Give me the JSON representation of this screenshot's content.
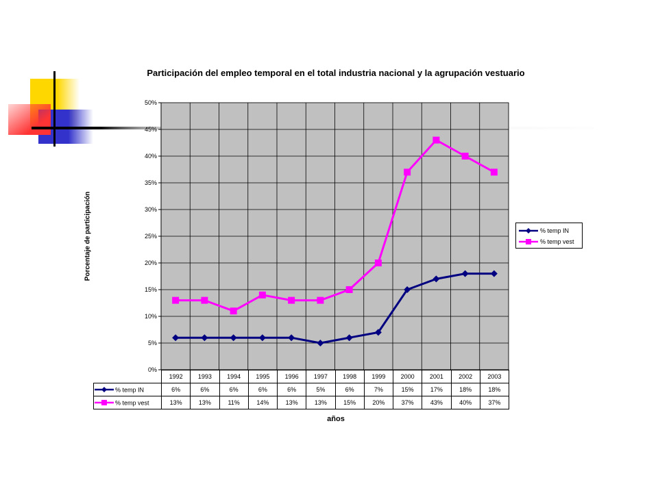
{
  "chart_data": {
    "type": "line",
    "title": "Participación del empleo temporal en el total industria nacional y la  agrupación vestuario",
    "xlabel": "años",
    "ylabel": "Porcentaje de participación",
    "categories": [
      "1992",
      "1993",
      "1994",
      "1995",
      "1996",
      "1997",
      "1998",
      "1999",
      "2000",
      "2001",
      "2002",
      "2003"
    ],
    "y_ticks": [
      "0%",
      "5%",
      "10%",
      "15%",
      "20%",
      "25%",
      "30%",
      "35%",
      "40%",
      "45%",
      "50%"
    ],
    "ylim": [
      0,
      50
    ],
    "grid": true,
    "legend_position": "right",
    "series": [
      {
        "name": "% temp IN",
        "values": [
          6,
          6,
          6,
          6,
          6,
          5,
          6,
          7,
          15,
          17,
          18,
          18
        ],
        "labels": [
          "6%",
          "6%",
          "6%",
          "6%",
          "6%",
          "5%",
          "6%",
          "7%",
          "15%",
          "17%",
          "18%",
          "18%"
        ],
        "color": "#000080",
        "marker": "diamond"
      },
      {
        "name": "% temp vest",
        "values": [
          13,
          13,
          11,
          14,
          13,
          13,
          15,
          20,
          37,
          43,
          40,
          37
        ],
        "labels": [
          "13%",
          "13%",
          "11%",
          "14%",
          "13%",
          "13%",
          "15%",
          "20%",
          "37%",
          "43%",
          "40%",
          "37%"
        ],
        "color": "#FF00FF",
        "marker": "square"
      }
    ],
    "plot_background": "#C0C0C0"
  },
  "decoration": {
    "yellow": "#FFD700",
    "blue": "#3333CC",
    "red": "#FF3333",
    "line": "#000000"
  }
}
